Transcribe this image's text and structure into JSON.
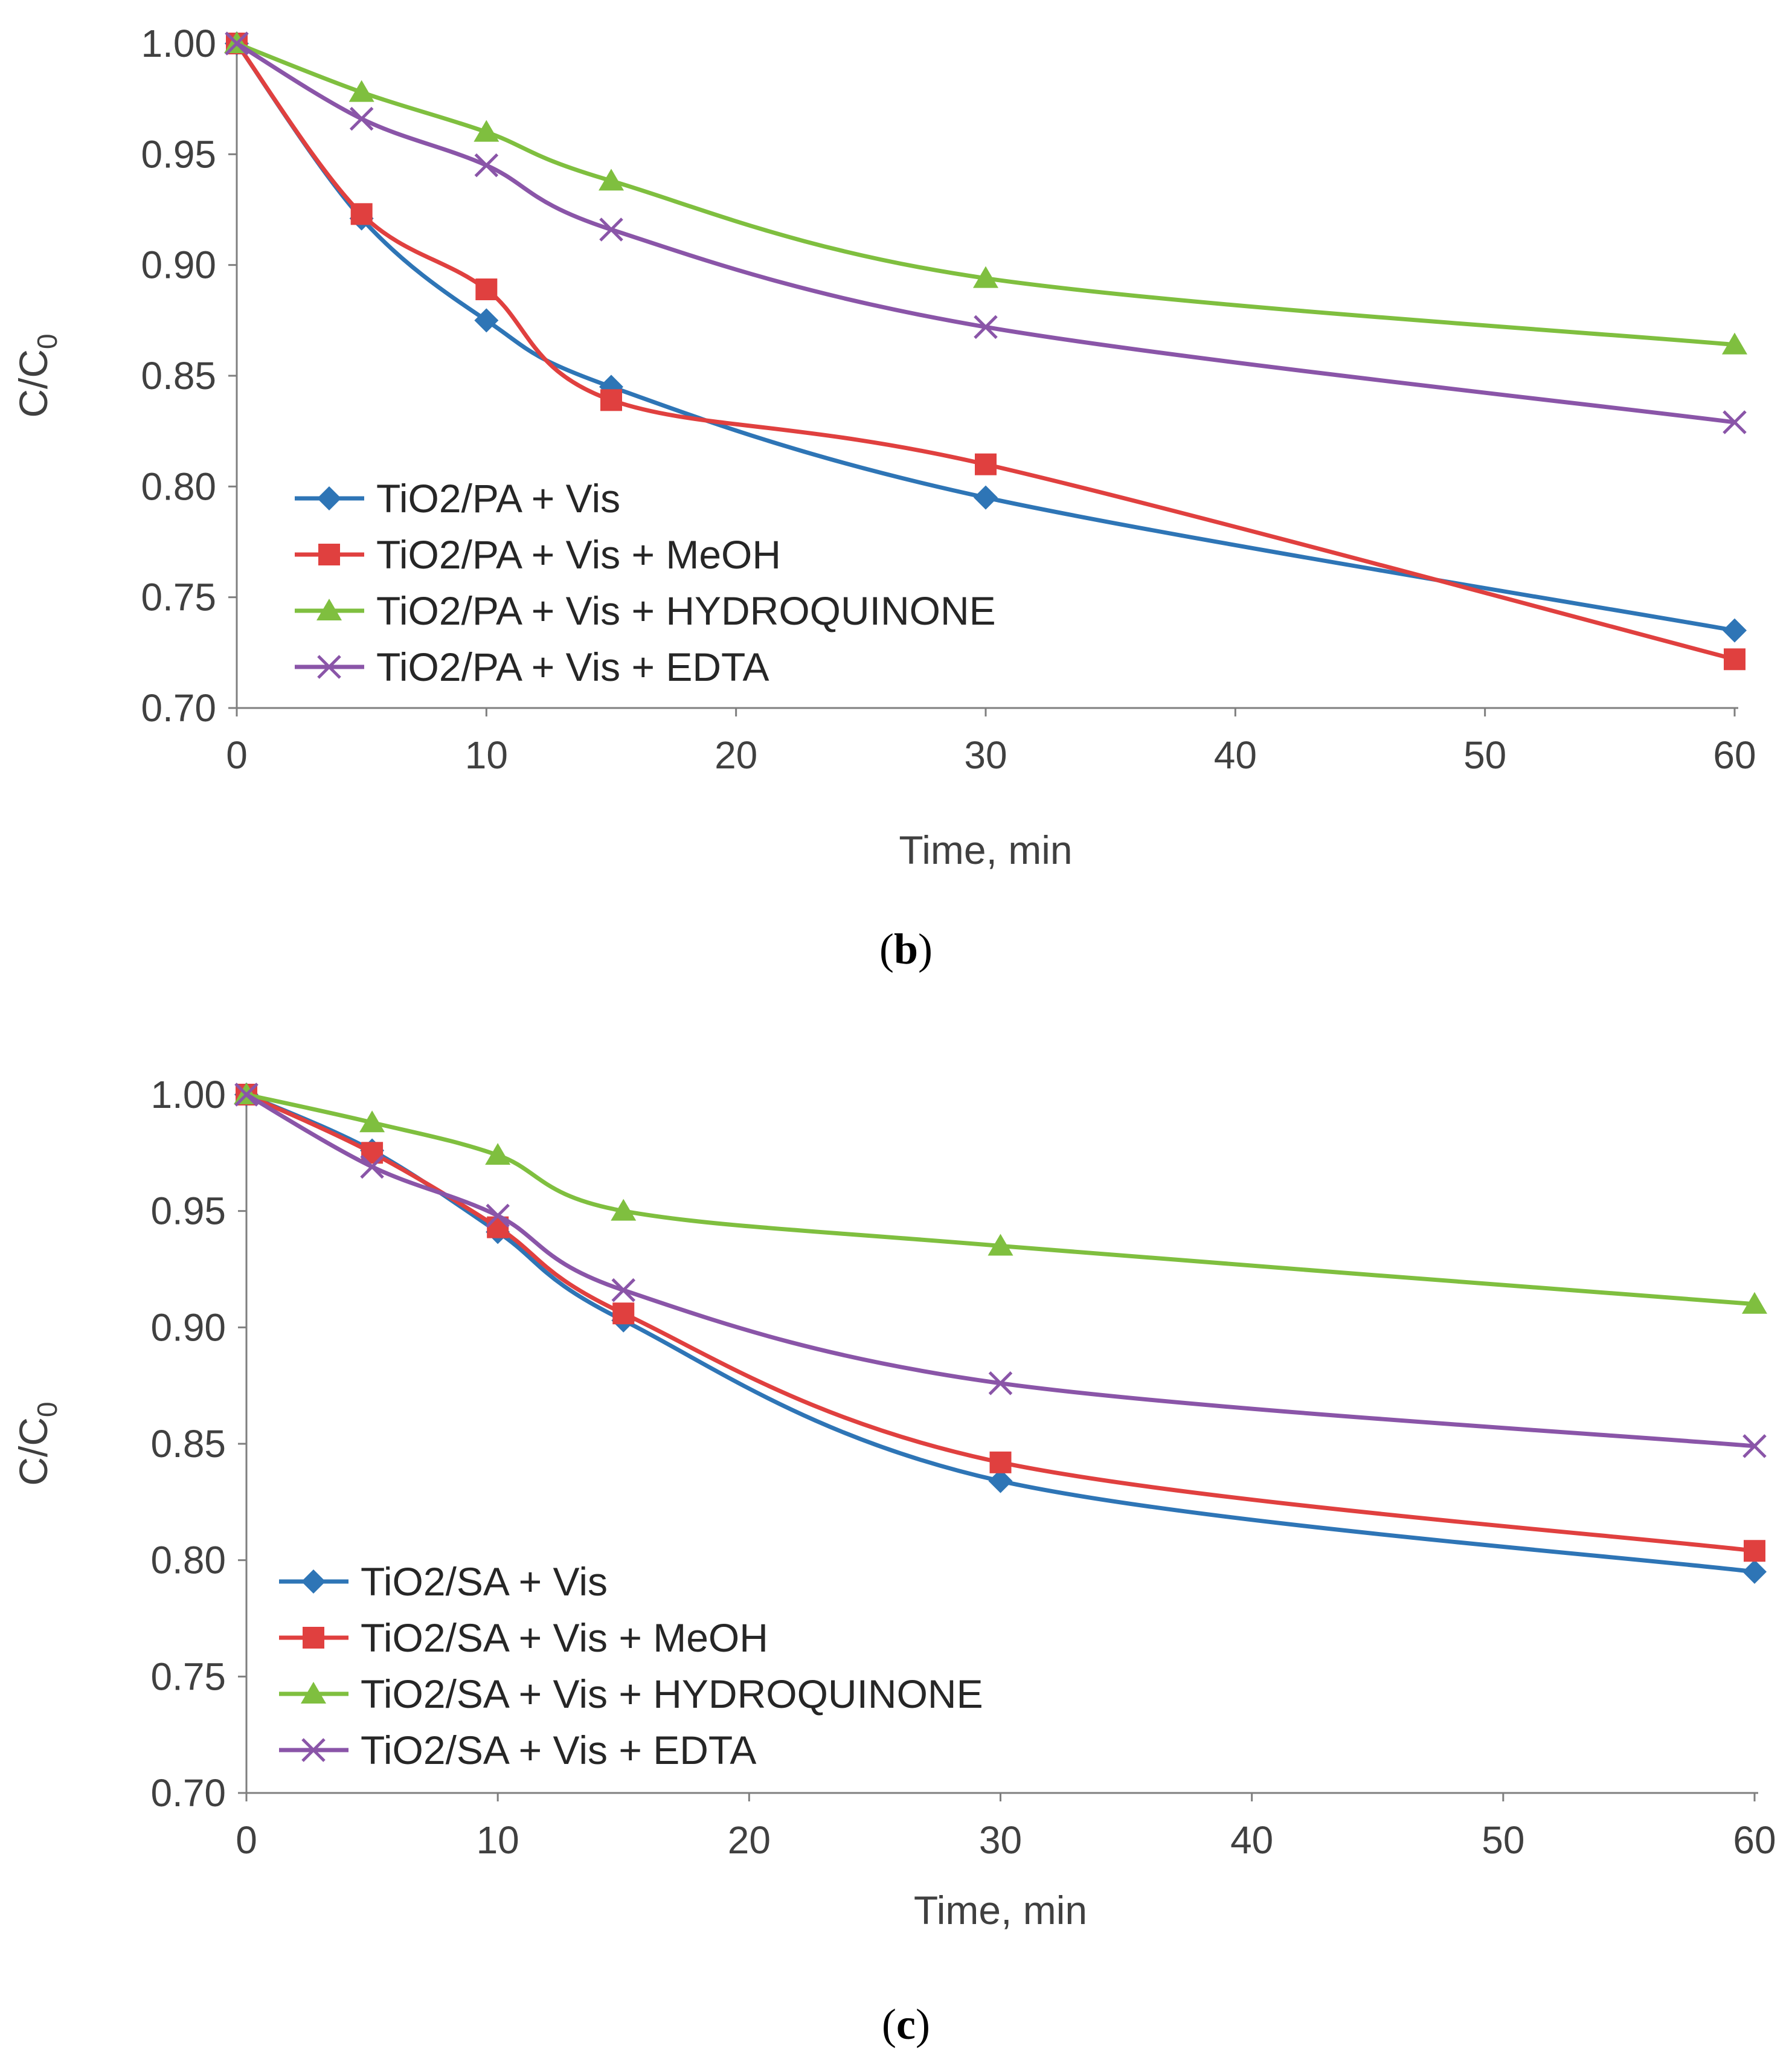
{
  "chart_data": [
    {
      "type": "line",
      "caption": "b",
      "xlabel": "Time, min",
      "ylabel": "C/C",
      "ylabel_sub": "0",
      "xlim": [
        0,
        60
      ],
      "ylim": [
        0.7,
        1.0
      ],
      "x_ticks": [
        "0",
        "10",
        "20",
        "30",
        "40",
        "50",
        "60"
      ],
      "y_ticks": [
        "0.70",
        "0.75",
        "0.80",
        "0.85",
        "0.90",
        "0.95",
        "1.00"
      ],
      "legend_position": "bottom-left",
      "x": [
        0,
        5,
        10,
        15,
        30,
        60
      ],
      "series": [
        {
          "name": "TiO2/PA + Vis",
          "color": "#2E75B6",
          "marker": "diamond",
          "values": [
            1.0,
            0.921,
            0.875,
            0.845,
            0.795,
            0.735
          ]
        },
        {
          "name": "TiO2/PA + Vis + MeOH",
          "color": "#E0403F",
          "marker": "square",
          "values": [
            1.0,
            0.923,
            0.889,
            0.839,
            0.81,
            0.722
          ]
        },
        {
          "name": "TiO2/PA + Vis + HYDROQUINONE",
          "color": "#7FBF3F",
          "marker": "triangle",
          "values": [
            1.0,
            0.978,
            0.96,
            0.938,
            0.894,
            0.864
          ]
        },
        {
          "name": "TiO2/PA + Vis + EDTA",
          "color": "#8A55A8",
          "marker": "x",
          "values": [
            1.0,
            0.966,
            0.945,
            0.916,
            0.872,
            0.829
          ]
        }
      ]
    },
    {
      "type": "line",
      "caption": "c",
      "xlabel": "Time, min",
      "ylabel": "C/C",
      "ylabel_sub": "0",
      "xlim": [
        0,
        60
      ],
      "ylim": [
        0.7,
        1.0
      ],
      "x_ticks": [
        "0",
        "10",
        "20",
        "30",
        "40",
        "50",
        "60"
      ],
      "y_ticks": [
        "0.70",
        "0.75",
        "0.80",
        "0.85",
        "0.90",
        "0.95",
        "1.00"
      ],
      "legend_position": "bottom-left",
      "x": [
        0,
        5,
        10,
        15,
        30,
        60
      ],
      "series": [
        {
          "name": "TiO2/SA  + Vis",
          "color": "#2E75B6",
          "marker": "diamond",
          "values": [
            1.0,
            0.976,
            0.941,
            0.903,
            0.834,
            0.795
          ]
        },
        {
          "name": "TiO2/SA  + Vis + MeOH",
          "color": "#E0403F",
          "marker": "square",
          "values": [
            1.0,
            0.975,
            0.943,
            0.906,
            0.842,
            0.804
          ]
        },
        {
          "name": "TiO2/SA  + Vis + HYDROQUINONE",
          "color": "#7FBF3F",
          "marker": "triangle",
          "values": [
            1.0,
            0.988,
            0.974,
            0.95,
            0.935,
            0.91
          ]
        },
        {
          "name": "TiO2/SA + Vis + EDTA",
          "color": "#8A55A8",
          "marker": "x",
          "values": [
            1.0,
            0.969,
            0.948,
            0.916,
            0.876,
            0.849
          ]
        }
      ]
    }
  ]
}
